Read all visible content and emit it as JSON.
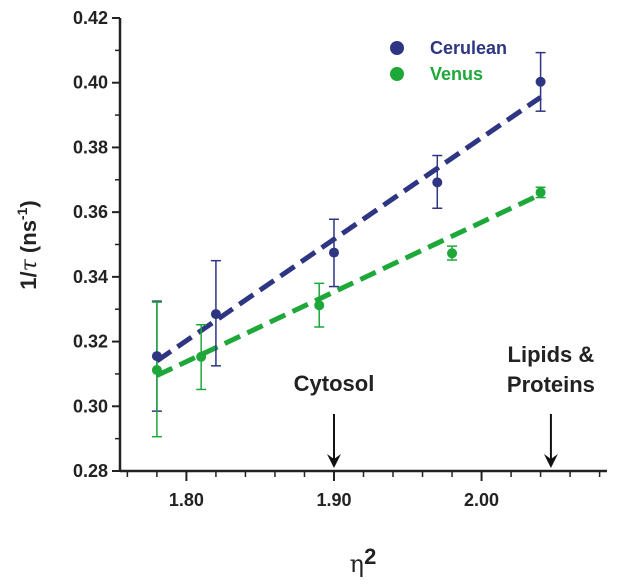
{
  "chart_data": {
    "type": "scatter",
    "xlabel": "η2",
    "ylabel": "1/τ (ns-1)",
    "ylabel_parts": {
      "prefix": "1/",
      "tau": "τ",
      "open": " (ns",
      "sup": "-1",
      "close": ")"
    },
    "xlabel_parts": {
      "eta": "η",
      "sup": "2"
    },
    "xlim": [
      1.755,
      2.085
    ],
    "ylim": [
      0.28,
      0.42
    ],
    "x_ticks": [
      1.8,
      1.9,
      2.0
    ],
    "x_tick_labels": [
      "1.80",
      "1.90",
      "2.00"
    ],
    "y_ticks": [
      0.28,
      0.3,
      0.32,
      0.34,
      0.36,
      0.38,
      0.4,
      0.42
    ],
    "y_tick_labels": [
      "0.28",
      "0.30",
      "0.32",
      "0.34",
      "0.36",
      "0.38",
      "0.40",
      "0.42"
    ],
    "series": [
      {
        "name": "Cerulean",
        "color": "#2e3582",
        "points": [
          {
            "x": 1.78,
            "y": 0.3155,
            "err_low": 0.2985,
            "err_high": 0.3325
          },
          {
            "x": 1.82,
            "y": 0.3285,
            "err_low": 0.3125,
            "err_high": 0.345
          },
          {
            "x": 1.9,
            "y": 0.3475,
            "err_low": 0.337,
            "err_high": 0.3578
          },
          {
            "x": 1.97,
            "y": 0.3692,
            "err_low": 0.3612,
            "err_high": 0.3775
          },
          {
            "x": 2.04,
            "y": 0.4003,
            "err_low": 0.3912,
            "err_high": 0.4093
          }
        ],
        "fit": {
          "x": [
            1.78,
            2.04
          ],
          "y": [
            0.314,
            0.3955
          ]
        }
      },
      {
        "name": "Venus",
        "color": "#1fa83a",
        "points": [
          {
            "x": 1.78,
            "y": 0.3112,
            "err_low": 0.2906,
            "err_high": 0.3322
          },
          {
            "x": 1.81,
            "y": 0.3153,
            "err_low": 0.3052,
            "err_high": 0.3252
          },
          {
            "x": 1.89,
            "y": 0.3312,
            "err_low": 0.3245,
            "err_high": 0.338
          },
          {
            "x": 1.98,
            "y": 0.3473,
            "err_low": 0.3452,
            "err_high": 0.3495
          },
          {
            "x": 2.04,
            "y": 0.3661,
            "err_low": 0.3645,
            "err_high": 0.3677
          }
        ],
        "fit": {
          "x": [
            1.78,
            2.04
          ],
          "y": [
            0.3095,
            0.3655
          ]
        }
      }
    ],
    "annotations": [
      {
        "text": "Cytosol",
        "lines": [
          "Cytosol"
        ],
        "x": 1.9
      },
      {
        "text": "Lipids & Proteins",
        "lines": [
          "Lipids &",
          "Proteins"
        ],
        "x": 2.047
      }
    ],
    "legend_position": "top-right"
  }
}
